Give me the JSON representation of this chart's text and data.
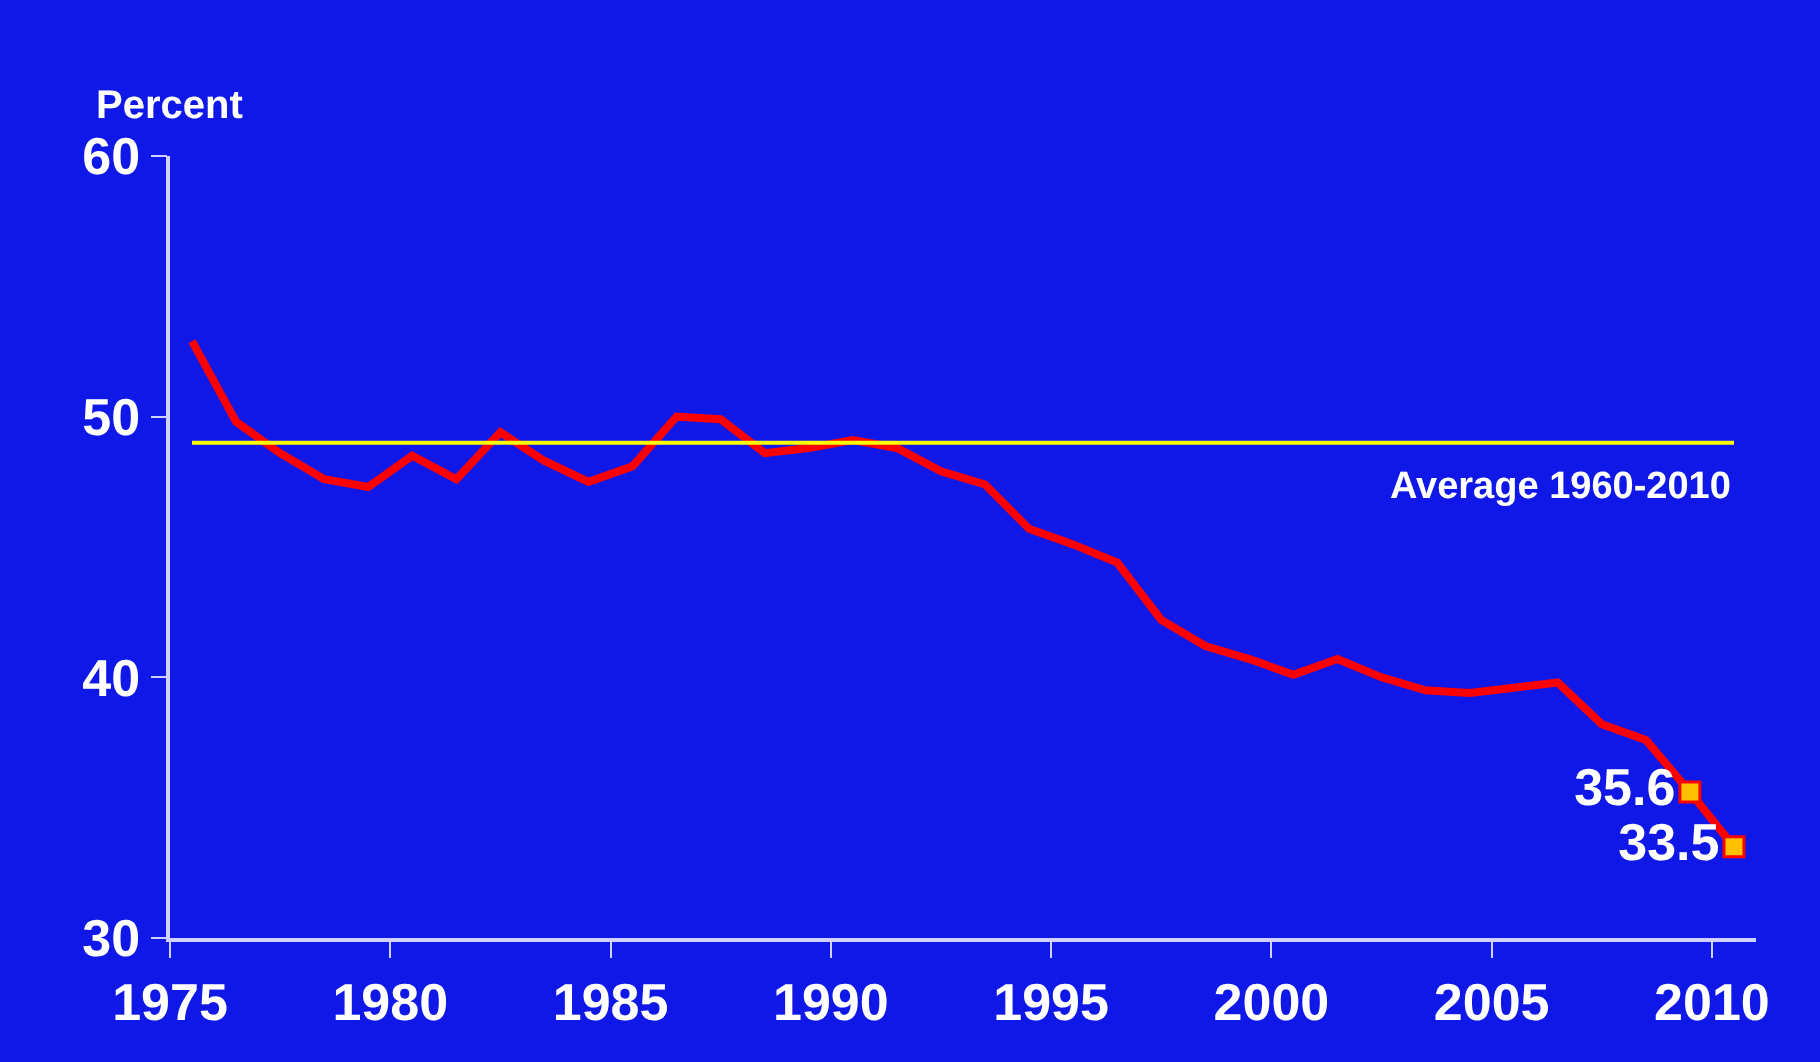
{
  "chart_data": {
    "type": "line",
    "ylabel": "Percent",
    "x": [
      1975.5,
      1976.5,
      1977.5,
      1978.5,
      1979.5,
      1980.5,
      1981.5,
      1982.5,
      1983.5,
      1984.5,
      1985.5,
      1986.5,
      1987.5,
      1988.5,
      1989.5,
      1990.5,
      1991.5,
      1992.5,
      1993.5,
      1994.5,
      1995.5,
      1996.5,
      1997.5,
      1998.5,
      1999.5,
      2000.5,
      2001.5,
      2002.5,
      2003.5,
      2004.5,
      2005.5,
      2006.5,
      2007.5,
      2008.5,
      2009.5,
      2010.5
    ],
    "series": [
      {
        "color": "#ff0000",
        "marker": "none",
        "values": [
          52.9,
          49.8,
          48.6,
          47.6,
          47.3,
          48.5,
          47.6,
          49.4,
          48.3,
          47.5,
          48.1,
          50.0,
          49.9,
          48.6,
          48.8,
          49.1,
          48.8,
          47.9,
          47.4,
          45.7,
          45.1,
          44.4,
          42.2,
          41.2,
          40.7,
          40.1,
          40.7,
          40.0,
          39.5,
          39.4,
          39.6,
          39.8,
          38.2,
          37.6,
          35.6,
          33.5
        ]
      },
      {
        "type": "scatter",
        "color": "#ffc000",
        "marker": "square",
        "x": [
          2009.5,
          2010.5
        ],
        "values": [
          35.6,
          33.5
        ],
        "value_labels": [
          "35.6",
          "33.5"
        ]
      }
    ],
    "ref_lines": [
      {
        "axis": "y",
        "value": 49,
        "label": "Average 1960-2010",
        "color": "#ffff00"
      }
    ],
    "xlim": [
      1975,
      2011
    ],
    "xticks": [
      1975,
      1980,
      1985,
      1990,
      1995,
      2000,
      2005,
      2010
    ],
    "ylim": [
      30,
      60
    ],
    "yticks": [
      30,
      40,
      50,
      60
    ],
    "grid": false
  }
}
